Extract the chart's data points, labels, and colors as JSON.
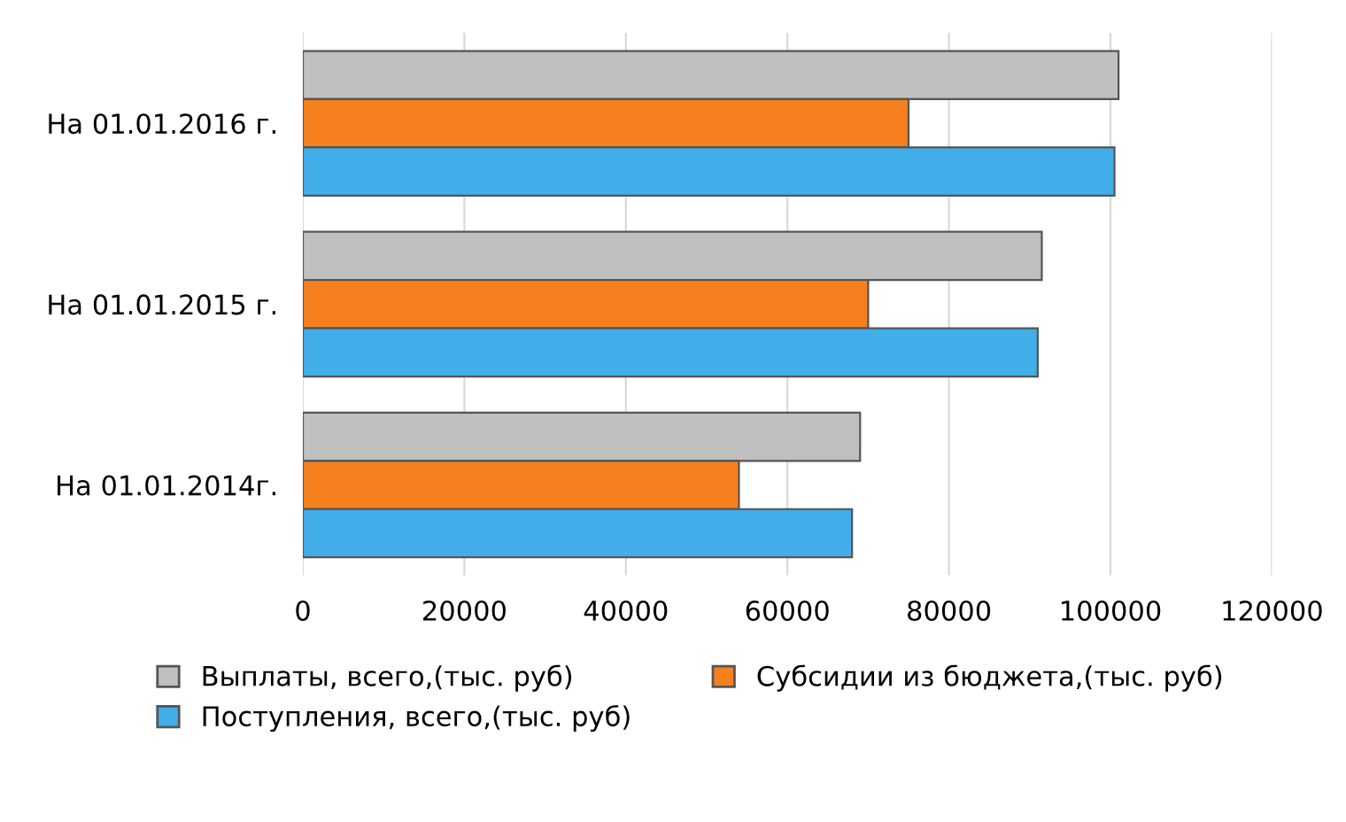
{
  "chart_data": {
    "type": "bar",
    "orientation": "horizontal",
    "categories": [
      "На 01.01.2016 г.",
      "На 01.01.2015 г.",
      "На 01.01.2014г."
    ],
    "series": [
      {
        "name": "Выплаты, всего,(тыс. руб)",
        "color": "#bfbfbf",
        "values": [
          101000,
          91500,
          69000
        ]
      },
      {
        "name": "Субсидии из бюджета,(тыс. руб)",
        "color": "#f7801e",
        "values": [
          75000,
          70000,
          54000
        ]
      },
      {
        "name": "Поступления, всего,(тыс. руб)",
        "color": "#41aeea",
        "values": [
          100500,
          91000,
          68000
        ]
      }
    ],
    "xlim": [
      0,
      120000
    ],
    "xticks": [
      0,
      20000,
      40000,
      60000,
      80000,
      100000,
      120000
    ],
    "grid": "x",
    "legend": "bottom"
  }
}
